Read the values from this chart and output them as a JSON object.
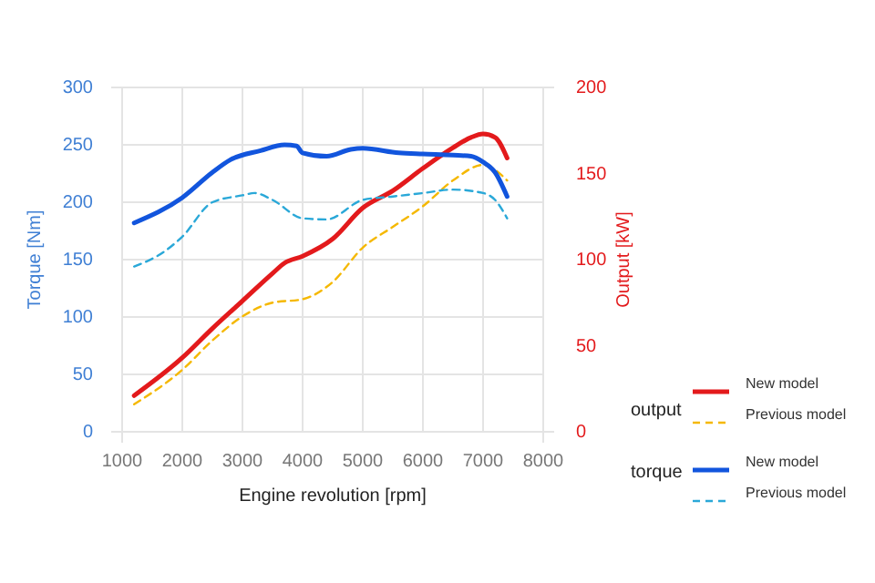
{
  "chart_data": {
    "type": "line",
    "xlabel": "Engine revolution [rpm]",
    "ylabel": "Torque [Nm]",
    "y2label": "Output [kW]",
    "xlim": [
      1000,
      8000
    ],
    "xticks": [
      1000,
      2000,
      3000,
      4000,
      5000,
      6000,
      7000,
      8000
    ],
    "ylim": [
      0,
      300
    ],
    "yticks": [
      0,
      50,
      100,
      150,
      200,
      250,
      300
    ],
    "y2lim": [
      0,
      200
    ],
    "y2ticks": [
      0,
      50,
      100,
      150,
      200
    ],
    "grid": true,
    "legend": "bottom right",
    "marker": "none",
    "annotations": [
      "output",
      "torque"
    ],
    "series": [
      {
        "name": "New model",
        "color": "#e31a1c",
        "axis": "y2",
        "line_style": "solid",
        "x": [
          1200,
          2000,
          2500,
          3000,
          3500,
          3700,
          4000,
          4500,
          5000,
          5500,
          6000,
          6500,
          6800,
          7000,
          7200,
          7400
        ],
        "values": [
          21,
          43,
          60,
          76,
          92,
          98,
          102,
          112,
          130,
          140,
          153,
          165,
          171,
          173,
          171,
          159
        ]
      },
      {
        "name": "Previous model",
        "color": "#f5b800",
        "axis": "y2",
        "line_style": "dashed",
        "x": [
          1200,
          2000,
          2500,
          3000,
          3500,
          4000,
          4500,
          5000,
          5500,
          6000,
          6500,
          7000,
          7400
        ],
        "values": [
          16,
          36,
          53,
          67,
          75,
          77,
          87,
          107,
          119,
          131,
          146,
          155,
          146
        ]
      },
      {
        "name": "New model",
        "color": "#1255dd",
        "axis": "y",
        "line_style": "solid",
        "x": [
          1200,
          2000,
          2500,
          2800,
          3300,
          3700,
          3900,
          4000,
          4400,
          4800,
          5000,
          5600,
          6000,
          6500,
          6800,
          7000,
          7200,
          7400
        ],
        "values": [
          182,
          204,
          226,
          237,
          245,
          250,
          249,
          243,
          240,
          246,
          247,
          243,
          242,
          241,
          240,
          235,
          226,
          205
        ]
      },
      {
        "name": "Previous model",
        "color": "#2aa8d8",
        "axis": "y",
        "line_style": "dashed",
        "x": [
          1200,
          1700,
          2000,
          2500,
          3000,
          3200,
          3500,
          4000,
          4400,
          5000,
          5500,
          6000,
          6500,
          7000,
          7200,
          7400
        ],
        "values": [
          144,
          157,
          170,
          200,
          206,
          208,
          202,
          186,
          185,
          202,
          205,
          208,
          211,
          208,
          202,
          186
        ]
      }
    ]
  }
}
